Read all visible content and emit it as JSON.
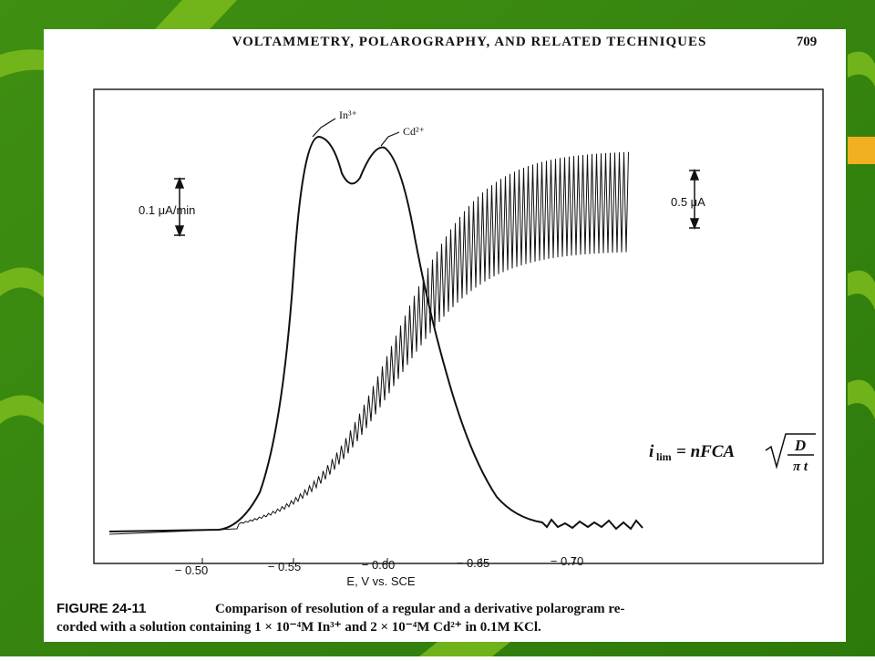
{
  "header": {
    "title": "VOLTAMMETRY, POLAROGRAPHY, AND RELATED TECHNIQUES",
    "page_number": "709"
  },
  "figure": {
    "peak_labels": [
      "In³⁺",
      "Cd²⁺"
    ],
    "scale_bars": [
      "0.1 μA/min",
      "0.5 μA"
    ],
    "x_tick_labels": [
      "− 0.50",
      "− 0.55",
      "− 0.60",
      "− 0.65",
      "− 0.70"
    ],
    "x_axis_label": "E, V vs. SCE",
    "equation": {
      "symbol": "i",
      "subscript": "lim",
      "rhs": "= nFCA",
      "numerator": "D",
      "denominator": "π t"
    }
  },
  "caption": {
    "label": "FIGURE 24-11",
    "lines": [
      "Comparison of resolution of a regular and a derivative polarogram re-",
      "corded with a solution containing 1 × 10⁻⁴M In³⁺ and 2 × 10⁻⁴M Cd²⁺ in 0.1M KCl."
    ]
  }
}
